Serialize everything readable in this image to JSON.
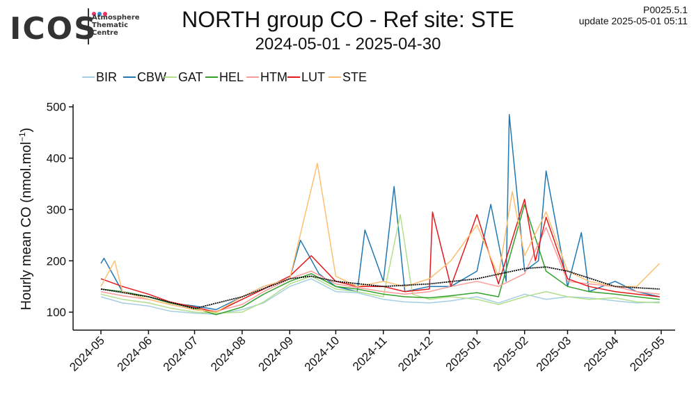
{
  "header": {
    "logo_text": "ICOS",
    "logo_sub": [
      "Atmosphere",
      "Thematic",
      "Centre"
    ],
    "logo_colors": [
      "#e8326e",
      "#2c8ed6",
      "#e8326e"
    ],
    "version": "P0025.5.1",
    "update": "update  2025-05-01 05:11"
  },
  "chart_data": {
    "type": "line",
    "title": "NORTH group CO - Ref site: STE",
    "subtitle": "2024-05-01 - 2025-04-30",
    "ylabel_base": "Hourly mean  CO (nmol.mol",
    "ylabel_sup": "−1",
    "ylabel_end": ")",
    "xlabel": "",
    "xlim": [
      "2024-05-01",
      "2025-05-01"
    ],
    "ylim": [
      65,
      505
    ],
    "yticks": [
      100,
      200,
      300,
      400,
      500
    ],
    "xticks": [
      "2024-05",
      "2024-06",
      "2024-07",
      "2024-08",
      "2024-09",
      "2024-10",
      "2024-11",
      "2024-12",
      "2025-01",
      "2025-02",
      "2025-03",
      "2025-04",
      "2025-05"
    ],
    "grid": false,
    "legend_position": "top-left",
    "series": [
      {
        "name": "BIR",
        "color": "#a6cee3",
        "x": [
          "2024-05-01",
          "2024-05-15",
          "2024-06-01",
          "2024-06-15",
          "2024-07-01",
          "2024-07-15",
          "2024-08-01",
          "2024-08-15",
          "2024-09-01",
          "2024-09-15",
          "2024-10-01",
          "2024-10-15",
          "2024-11-01",
          "2024-11-15",
          "2024-12-01",
          "2024-12-15",
          "2025-01-01",
          "2025-01-15",
          "2025-02-01",
          "2025-02-15",
          "2025-03-01",
          "2025-03-15",
          "2025-04-01",
          "2025-04-15",
          "2025-04-30"
        ],
        "values": [
          130,
          118,
          112,
          102,
          98,
          96,
          105,
          118,
          150,
          165,
          140,
          138,
          125,
          120,
          118,
          122,
          130,
          118,
          135,
          125,
          130,
          128,
          122,
          118,
          120
        ]
      },
      {
        "name": "CBW",
        "color": "#1f78b4",
        "x": [
          "2024-05-01",
          "2024-05-03",
          "2024-05-15",
          "2024-06-01",
          "2024-06-15",
          "2024-07-01",
          "2024-07-15",
          "2024-08-01",
          "2024-08-15",
          "2024-09-01",
          "2024-09-08",
          "2024-09-20",
          "2024-10-01",
          "2024-10-15",
          "2024-10-20",
          "2024-11-01",
          "2024-11-08",
          "2024-11-15",
          "2024-12-01",
          "2024-12-15",
          "2025-01-01",
          "2025-01-10",
          "2025-01-20",
          "2025-01-22",
          "2025-02-01",
          "2025-02-10",
          "2025-02-15",
          "2025-03-01",
          "2025-03-10",
          "2025-03-15",
          "2025-04-01",
          "2025-04-15",
          "2025-04-30"
        ],
        "values": [
          195,
          205,
          140,
          130,
          118,
          112,
          105,
          130,
          150,
          165,
          240,
          175,
          150,
          140,
          260,
          160,
          345,
          140,
          150,
          150,
          180,
          310,
          160,
          485,
          180,
          200,
          375,
          150,
          255,
          140,
          160,
          140,
          130
        ]
      },
      {
        "name": "GAT",
        "color": "#b2df8a",
        "x": [
          "2024-05-01",
          "2024-05-15",
          "2024-06-01",
          "2024-06-15",
          "2024-07-01",
          "2024-07-15",
          "2024-08-01",
          "2024-08-15",
          "2024-09-01",
          "2024-09-15",
          "2024-10-01",
          "2024-10-15",
          "2024-11-01",
          "2024-11-12",
          "2024-11-20",
          "2024-12-01",
          "2024-12-15",
          "2025-01-01",
          "2025-01-15",
          "2025-02-01",
          "2025-02-15",
          "2025-03-01",
          "2025-03-15",
          "2025-04-01",
          "2025-04-15",
          "2025-04-30"
        ],
        "values": [
          135,
          125,
          118,
          108,
          100,
          98,
          100,
          120,
          155,
          170,
          145,
          140,
          130,
          290,
          135,
          125,
          130,
          125,
          115,
          130,
          140,
          130,
          125,
          128,
          120,
          118
        ]
      },
      {
        "name": "HEL",
        "color": "#33a02c",
        "x": [
          "2024-05-01",
          "2024-05-15",
          "2024-06-01",
          "2024-06-15",
          "2024-07-01",
          "2024-07-15",
          "2024-08-01",
          "2024-08-15",
          "2024-09-01",
          "2024-09-15",
          "2024-10-01",
          "2024-10-15",
          "2024-11-01",
          "2024-11-15",
          "2024-12-01",
          "2024-12-15",
          "2025-01-01",
          "2025-01-15",
          "2025-02-01",
          "2025-02-15",
          "2025-03-01",
          "2025-03-15",
          "2025-04-01",
          "2025-04-15",
          "2025-04-30"
        ],
        "values": [
          145,
          140,
          130,
          118,
          108,
          95,
          110,
          135,
          160,
          175,
          150,
          145,
          135,
          130,
          128,
          132,
          138,
          130,
          310,
          180,
          150,
          140,
          135,
          130,
          125
        ]
      },
      {
        "name": "HTM",
        "color": "#fb9a99",
        "x": [
          "2024-05-01",
          "2024-05-15",
          "2024-06-01",
          "2024-06-15",
          "2024-07-01",
          "2024-07-15",
          "2024-08-01",
          "2024-08-15",
          "2024-09-01",
          "2024-09-15",
          "2024-10-01",
          "2024-10-15",
          "2024-11-01",
          "2024-11-15",
          "2024-12-01",
          "2024-12-15",
          "2025-01-01",
          "2025-01-15",
          "2025-02-01",
          "2025-02-15",
          "2025-03-01",
          "2025-03-15",
          "2025-04-01",
          "2025-04-15",
          "2025-04-30"
        ],
        "values": [
          140,
          132,
          125,
          115,
          105,
          102,
          115,
          140,
          165,
          180,
          155,
          148,
          140,
          135,
          140,
          150,
          160,
          150,
          175,
          265,
          160,
          155,
          150,
          140,
          135
        ]
      },
      {
        "name": "LUT",
        "color": "#e31a1c",
        "x": [
          "2024-05-01",
          "2024-05-15",
          "2024-06-01",
          "2024-06-15",
          "2024-07-01",
          "2024-07-15",
          "2024-08-01",
          "2024-08-15",
          "2024-09-01",
          "2024-09-15",
          "2024-10-01",
          "2024-10-15",
          "2024-11-01",
          "2024-11-15",
          "2024-12-01",
          "2024-12-03",
          "2024-12-15",
          "2025-01-01",
          "2025-01-15",
          "2025-02-01",
          "2025-02-08",
          "2025-02-15",
          "2025-03-01",
          "2025-03-15",
          "2025-04-01",
          "2025-04-15",
          "2025-04-30"
        ],
        "values": [
          165,
          150,
          135,
          120,
          110,
          100,
          125,
          145,
          170,
          210,
          160,
          150,
          150,
          140,
          145,
          295,
          150,
          290,
          155,
          320,
          200,
          285,
          165,
          150,
          140,
          135,
          130
        ]
      },
      {
        "name": "STE",
        "color": "#fdbf6f",
        "x": [
          "2024-05-01",
          "2024-05-10",
          "2024-05-15",
          "2024-06-01",
          "2024-06-15",
          "2024-07-01",
          "2024-07-15",
          "2024-08-01",
          "2024-08-15",
          "2024-09-01",
          "2024-09-19",
          "2024-10-01",
          "2024-10-15",
          "2024-11-01",
          "2024-11-15",
          "2024-12-01",
          "2024-12-15",
          "2025-01-01",
          "2025-01-15",
          "2025-01-24",
          "2025-02-01",
          "2025-02-15",
          "2025-03-01",
          "2025-03-15",
          "2025-04-01",
          "2025-04-15",
          "2025-04-30"
        ],
        "values": [
          150,
          200,
          140,
          125,
          115,
          105,
          100,
          130,
          150,
          165,
          390,
          170,
          150,
          160,
          150,
          165,
          200,
          270,
          170,
          335,
          210,
          295,
          180,
          160,
          150,
          150,
          195
        ]
      },
      {
        "name": "",
        "color": "#000000",
        "x": [
          "2024-05-01",
          "2024-06-01",
          "2024-07-01",
          "2024-08-01",
          "2024-09-01",
          "2024-09-15",
          "2024-10-01",
          "2024-11-01",
          "2024-12-01",
          "2025-01-01",
          "2025-02-01",
          "2025-02-15",
          "2025-03-01",
          "2025-04-01",
          "2025-04-30"
        ],
        "values": [
          145,
          130,
          107,
          130,
          165,
          170,
          160,
          150,
          155,
          165,
          185,
          188,
          180,
          150,
          145
        ]
      }
    ]
  }
}
